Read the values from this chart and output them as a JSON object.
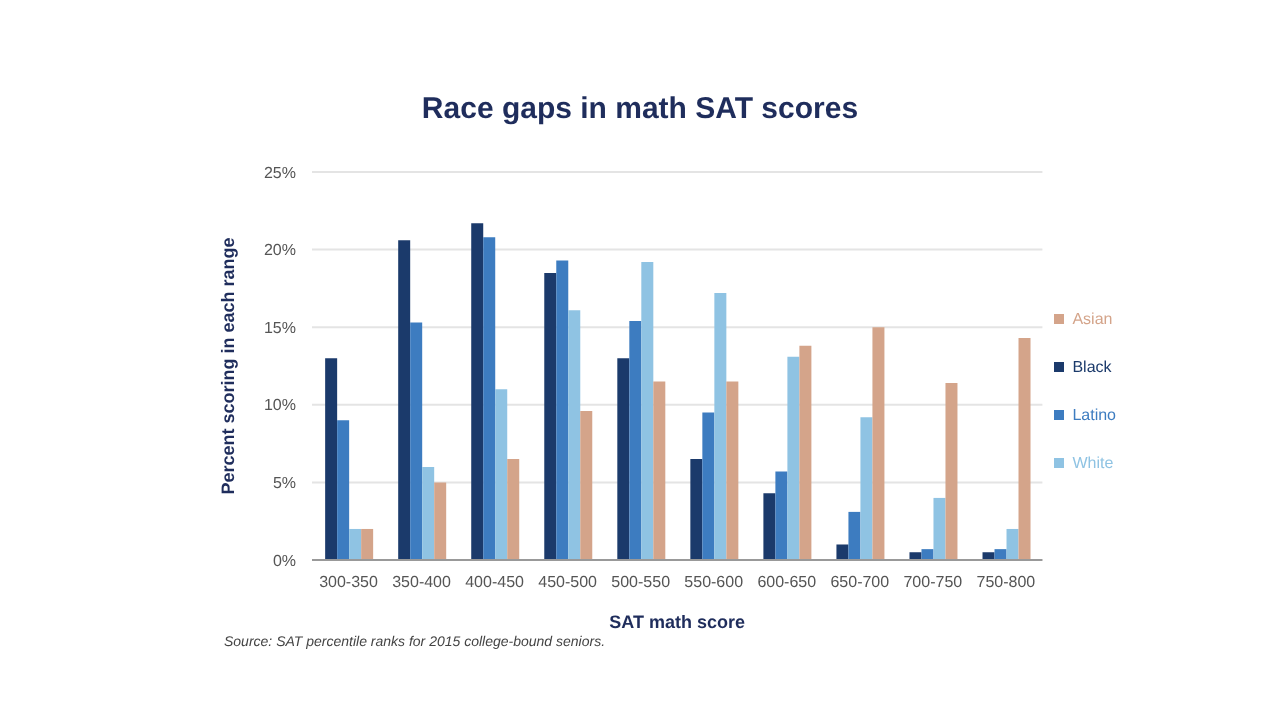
{
  "chart_data": {
    "type": "bar",
    "title": "Race gaps in math SAT scores",
    "xlabel": "SAT math score",
    "ylabel": "Percent scoring in each range",
    "categories": [
      "300-350",
      "350-400",
      "400-450",
      "450-500",
      "500-550",
      "550-600",
      "600-650",
      "650-700",
      "700-750",
      "750-800"
    ],
    "series": [
      {
        "name": "Black",
        "color": "#1b3a6b",
        "values": [
          13,
          20.6,
          21.7,
          18.5,
          13,
          6.5,
          4.3,
          1,
          0.5,
          0.5
        ]
      },
      {
        "name": "Latino",
        "color": "#3d7cc0",
        "values": [
          9,
          15.3,
          20.8,
          19.3,
          15.4,
          9.5,
          5.7,
          3.1,
          0.7,
          0.7
        ]
      },
      {
        "name": "White",
        "color": "#8fc3e3",
        "values": [
          2,
          6,
          11,
          16.1,
          19.2,
          17.2,
          13.1,
          9.2,
          4,
          2
        ]
      },
      {
        "name": "Asian",
        "color": "#d4a48a",
        "values": [
          2,
          5,
          6.5,
          9.6,
          11.5,
          11.5,
          13.8,
          15,
          11.4,
          14.3
        ]
      }
    ],
    "ylim": [
      0,
      25
    ],
    "yticks": [
      {
        "value": 0,
        "label": "0%"
      },
      {
        "value": 5,
        "label": "5%"
      },
      {
        "value": 10,
        "label": "10%"
      },
      {
        "value": 15,
        "label": "15%"
      },
      {
        "value": 20,
        "label": "20%"
      },
      {
        "value": 25,
        "label": "25%"
      }
    ],
    "grid": "y",
    "legend": "right",
    "annotations": [
      "Source: SAT percentile ranks for 2015 college-bound seniors."
    ]
  }
}
